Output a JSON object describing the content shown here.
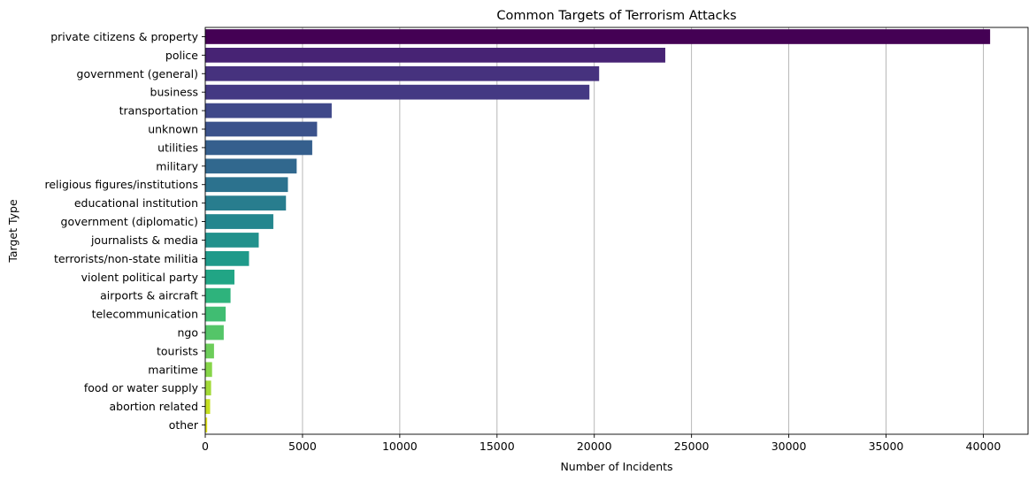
{
  "chart_data": {
    "type": "bar",
    "orientation": "horizontal",
    "title": "Common Targets of Terrorism Attacks",
    "xlabel": "Number of Incidents",
    "ylabel": "Target Type",
    "xlim": [
      0,
      42300
    ],
    "xticks": [
      0,
      5000,
      10000,
      15000,
      20000,
      25000,
      30000,
      35000,
      40000
    ],
    "grid": "x-axis only",
    "palette": "viridis",
    "categories": [
      "private citizens & property",
      "police",
      "government (general)",
      "business",
      "transportation",
      "unknown",
      "utilities",
      "military",
      "religious figures/institutions",
      "educational institution",
      "government (diplomatic)",
      "journalists & media",
      "terrorists/non-state militia",
      "violent political party",
      "airports & aircraft",
      "telecommunication",
      "ngo",
      "tourists",
      "maritime",
      "food or water supply",
      "abortion related",
      "other"
    ],
    "values": [
      40350,
      23650,
      20250,
      19750,
      6500,
      5750,
      5500,
      4700,
      4250,
      4150,
      3500,
      2750,
      2250,
      1500,
      1300,
      1050,
      950,
      450,
      350,
      300,
      250,
      100
    ],
    "colors": [
      "#440154",
      "#472374",
      "#46327e",
      "#443983",
      "#3f4889",
      "#3b528b",
      "#355f8d",
      "#31688e",
      "#2c728e",
      "#287d8e",
      "#24868e",
      "#21918c",
      "#1f9a8a",
      "#21a585",
      "#2eb37c",
      "#40bd72",
      "#54c568",
      "#6ccd5a",
      "#86d549",
      "#a2da37",
      "#c5e021",
      "#e4e51b"
    ]
  }
}
